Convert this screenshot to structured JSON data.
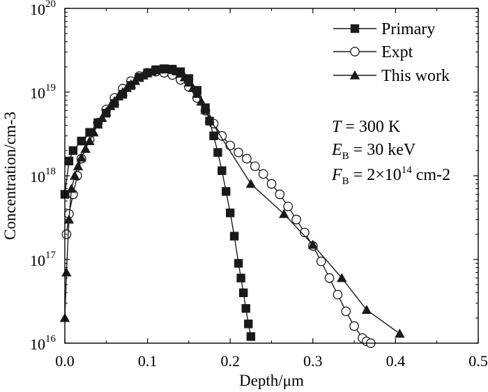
{
  "chart_data": {
    "type": "scatter",
    "xlabel": "Depth/μm",
    "ylabel": "Concentration/cm-3",
    "xlim": [
      0.0,
      0.5
    ],
    "ylim": [
      1e+16,
      1e+20
    ],
    "y_scale": "log",
    "x_ticks": [
      "0.0",
      "0.1",
      "0.2",
      "0.3",
      "0.4",
      "0.5"
    ],
    "y_ticks": [
      {
        "base": "10",
        "exp": "16"
      },
      {
        "base": "10",
        "exp": "17"
      },
      {
        "base": "10",
        "exp": "18"
      },
      {
        "base": "10",
        "exp": "19"
      },
      {
        "base": "10",
        "exp": "20"
      }
    ],
    "grid": false,
    "legend_position": "top-right",
    "series": [
      {
        "name": "Primary",
        "marker": "filled-square",
        "line": true,
        "x": [
          0.0,
          0.005,
          0.01,
          0.02,
          0.03,
          0.04,
          0.05,
          0.06,
          0.07,
          0.08,
          0.09,
          0.1,
          0.11,
          0.12,
          0.13,
          0.14,
          0.15,
          0.16,
          0.17,
          0.175,
          0.18,
          0.185,
          0.19,
          0.195,
          0.2,
          0.205,
          0.21,
          0.213,
          0.216,
          0.219,
          0.222,
          0.225
        ],
        "y": [
          6e+17,
          1.5e+18,
          2e+18,
          2.6e+18,
          3.3e+18,
          4.3e+18,
          5.6e+18,
          7.3e+18,
          9.4e+18,
          1.2e+19,
          1.5e+19,
          1.7e+19,
          1.85e+19,
          1.9e+19,
          1.88e+19,
          1.75e+19,
          1.45e+19,
          1.05e+19,
          6.5e+18,
          4.5e+18,
          3e+18,
          1.9e+18,
          1.15e+18,
          6.5e+17,
          3.6e+17,
          1.9e+17,
          9e+16,
          6e+16,
          4e+16,
          2.6e+16,
          1.7e+16,
          1.2e+16
        ]
      },
      {
        "name": "Expt",
        "marker": "open-circle",
        "line": true,
        "x": [
          0.002,
          0.005,
          0.01,
          0.015,
          0.02,
          0.03,
          0.04,
          0.05,
          0.06,
          0.07,
          0.08,
          0.09,
          0.1,
          0.11,
          0.12,
          0.13,
          0.14,
          0.15,
          0.16,
          0.17,
          0.18,
          0.19,
          0.2,
          0.21,
          0.22,
          0.23,
          0.24,
          0.25,
          0.26,
          0.27,
          0.28,
          0.29,
          0.3,
          0.31,
          0.32,
          0.33,
          0.34,
          0.35,
          0.36,
          0.365,
          0.37
        ],
        "y": [
          2e+17,
          3.5e+17,
          6e+17,
          1e+18,
          1.6e+18,
          2.7e+18,
          4.3e+18,
          6.2e+18,
          8.5e+18,
          1.1e+19,
          1.35e+19,
          1.55e+19,
          1.7e+19,
          1.75e+19,
          1.7e+19,
          1.6e+19,
          1.4e+19,
          1.15e+19,
          8.5e+18,
          6e+18,
          4.2e+18,
          3e+18,
          2.3e+18,
          1.9e+18,
          1.6e+18,
          1.3e+18,
          1.05e+18,
          8e+17,
          6e+17,
          4.3e+17,
          3e+17,
          2.1e+17,
          1.45e+17,
          9.5e+16,
          6e+16,
          3.8e+16,
          2.4e+16,
          1.6e+16,
          1.15e+16,
          1.05e+16,
          1e+16
        ]
      },
      {
        "name": "This work",
        "marker": "filled-triangle",
        "line": true,
        "x": [
          0.0,
          0.002,
          0.005,
          0.008,
          0.012,
          0.016,
          0.02,
          0.025,
          0.03,
          0.035,
          0.04,
          0.045,
          0.05,
          0.055,
          0.06,
          0.065,
          0.07,
          0.075,
          0.08,
          0.085,
          0.09,
          0.095,
          0.1,
          0.105,
          0.11,
          0.115,
          0.12,
          0.125,
          0.13,
          0.135,
          0.14,
          0.145,
          0.15,
          0.155,
          0.16,
          0.165,
          0.17,
          0.175,
          0.225,
          0.265,
          0.3,
          0.335,
          0.365,
          0.405
        ],
        "y": [
          2e+16,
          7e+16,
          3e+17,
          7e+17,
          1e+18,
          1.3e+18,
          1.65e+18,
          2.1e+18,
          2.6e+18,
          3.3e+18,
          4.1e+18,
          4.9e+18,
          5.8e+18,
          6.8e+18,
          7.8e+18,
          8.9e+18,
          1e+19,
          1.12e+19,
          1.24e+19,
          1.36e+19,
          1.48e+19,
          1.58e+19,
          1.68e+19,
          1.76e+19,
          1.82e+19,
          1.86e+19,
          1.88e+19,
          1.87e+19,
          1.84e+19,
          1.77e+19,
          1.66e+19,
          1.5e+19,
          1.3e+19,
          1.12e+19,
          9.5e+18,
          7.7e+18,
          6.1e+18,
          4.8e+18,
          8e+17,
          3.5e+17,
          1.5e+17,
          6e+16,
          2.5e+16,
          1.3e+16
        ]
      }
    ],
    "annotations": [
      {
        "var": "T",
        "sub": "",
        "eq": " = 300 K",
        "sup": "",
        "tail": ""
      },
      {
        "var": "E",
        "sub": "B",
        "eq": " = 30 keV",
        "sup": "",
        "tail": ""
      },
      {
        "var": "F",
        "sub": "B",
        "eq": " = 2×10",
        "sup": "14",
        "tail": " cm-2"
      }
    ],
    "colors": {
      "marker": "#1a1a1a",
      "line": "#1a1a1a",
      "background": "#ffffff"
    }
  }
}
